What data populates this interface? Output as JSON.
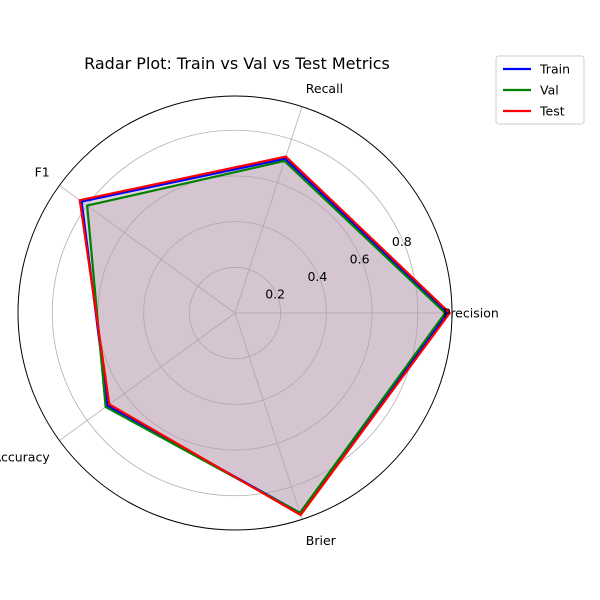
{
  "chart_data": {
    "type": "radar",
    "title": "Radar Plot: Train vs Val vs Test Metrics",
    "categories": [
      "Precision",
      "Recall",
      "F1",
      "Accuracy",
      "Brier"
    ],
    "rticks": [
      "0.2",
      "0.4",
      "0.6",
      "0.8"
    ],
    "rtick_values": [
      0.2,
      0.4,
      0.6,
      0.8
    ],
    "rlim": [
      0,
      0.95
    ],
    "grid": true,
    "legend_position": "top-right outside",
    "series": [
      {
        "name": "Train",
        "color": "#0000ff",
        "values": [
          0.93,
          0.71,
          0.83,
          0.69,
          0.92
        ]
      },
      {
        "name": "Val",
        "color": "#008000",
        "values": [
          0.92,
          0.7,
          0.8,
          0.7,
          0.92
        ]
      },
      {
        "name": "Test",
        "color": "#ff0000",
        "values": [
          0.94,
          0.72,
          0.84,
          0.68,
          0.93
        ]
      }
    ],
    "fill_color": "#b89aae"
  }
}
